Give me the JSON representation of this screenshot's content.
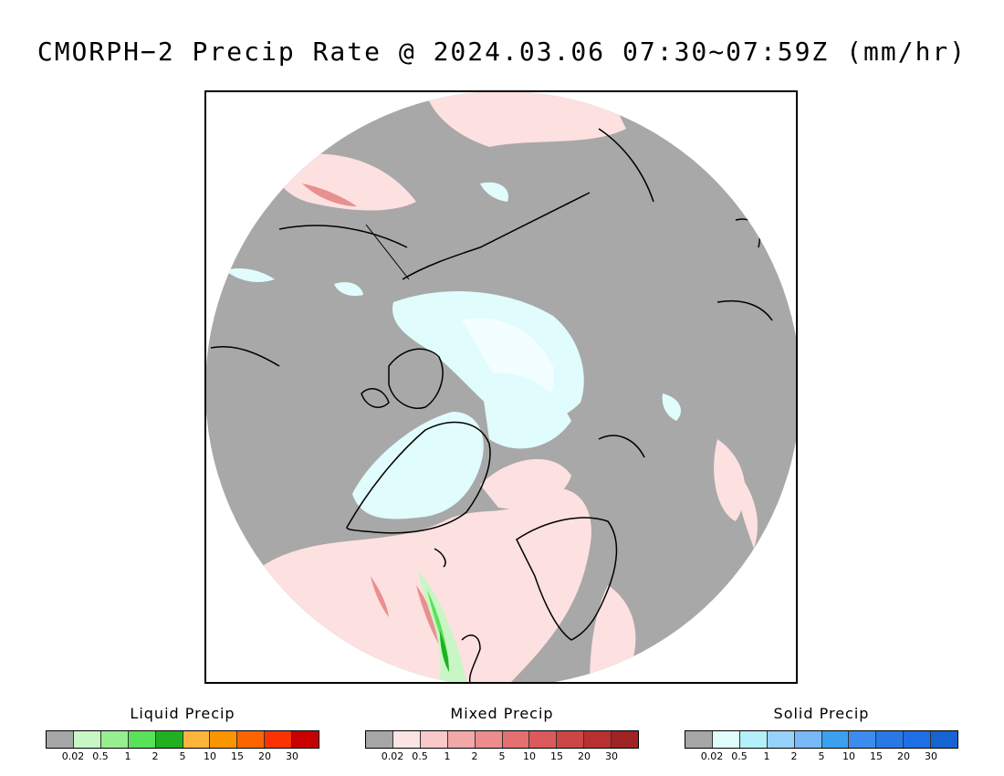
{
  "title": "CMORPH−2 Precip Rate @ 2024.03.06 07:30~07:59Z (mm/hr)",
  "map": {
    "projection": "north polar stereographic",
    "colors": {
      "no_precip": "#a8a8a8",
      "background": "#ffffff",
      "coast": "#000000",
      "mixed_light": "#fde0e0",
      "solid_light": "#e0fcfc",
      "liquid_light": "#c8f7c5",
      "liquid_mid": "#5de15a",
      "liquid_dark": "#20b020",
      "mixed_mid": "#e88f8f"
    }
  },
  "legends": [
    {
      "title": "Liquid Precip",
      "colors": [
        "#a6a6a6",
        "#c8f7c5",
        "#96ef8f",
        "#5ae15a",
        "#20b020",
        "#fcb43c",
        "#fc9600",
        "#fc6400",
        "#fc3200",
        "#c80000"
      ],
      "ticks": [
        "0.02",
        "0.5",
        "1",
        "2",
        "5",
        "10",
        "15",
        "20",
        "30"
      ]
    },
    {
      "title": "Mixed Precip",
      "colors": [
        "#a6a6a6",
        "#fde4e4",
        "#f9c8c8",
        "#f2a8a8",
        "#ec8c8c",
        "#e47070",
        "#dc5a5a",
        "#cc4646",
        "#b83030",
        "#a02424"
      ],
      "ticks": [
        "0.02",
        "0.5",
        "1",
        "2",
        "5",
        "10",
        "15",
        "20",
        "30"
      ]
    },
    {
      "title": "Solid Precip",
      "colors": [
        "#a6a6a6",
        "#e0fcfc",
        "#b4f0fa",
        "#96d2fa",
        "#78b9fa",
        "#3ca0f0",
        "#3c8cf0",
        "#2878e6",
        "#1e6ee6",
        "#1464d2"
      ],
      "ticks": [
        "0.02",
        "0.5",
        "1",
        "2",
        "5",
        "10",
        "15",
        "20",
        "30"
      ]
    }
  ]
}
